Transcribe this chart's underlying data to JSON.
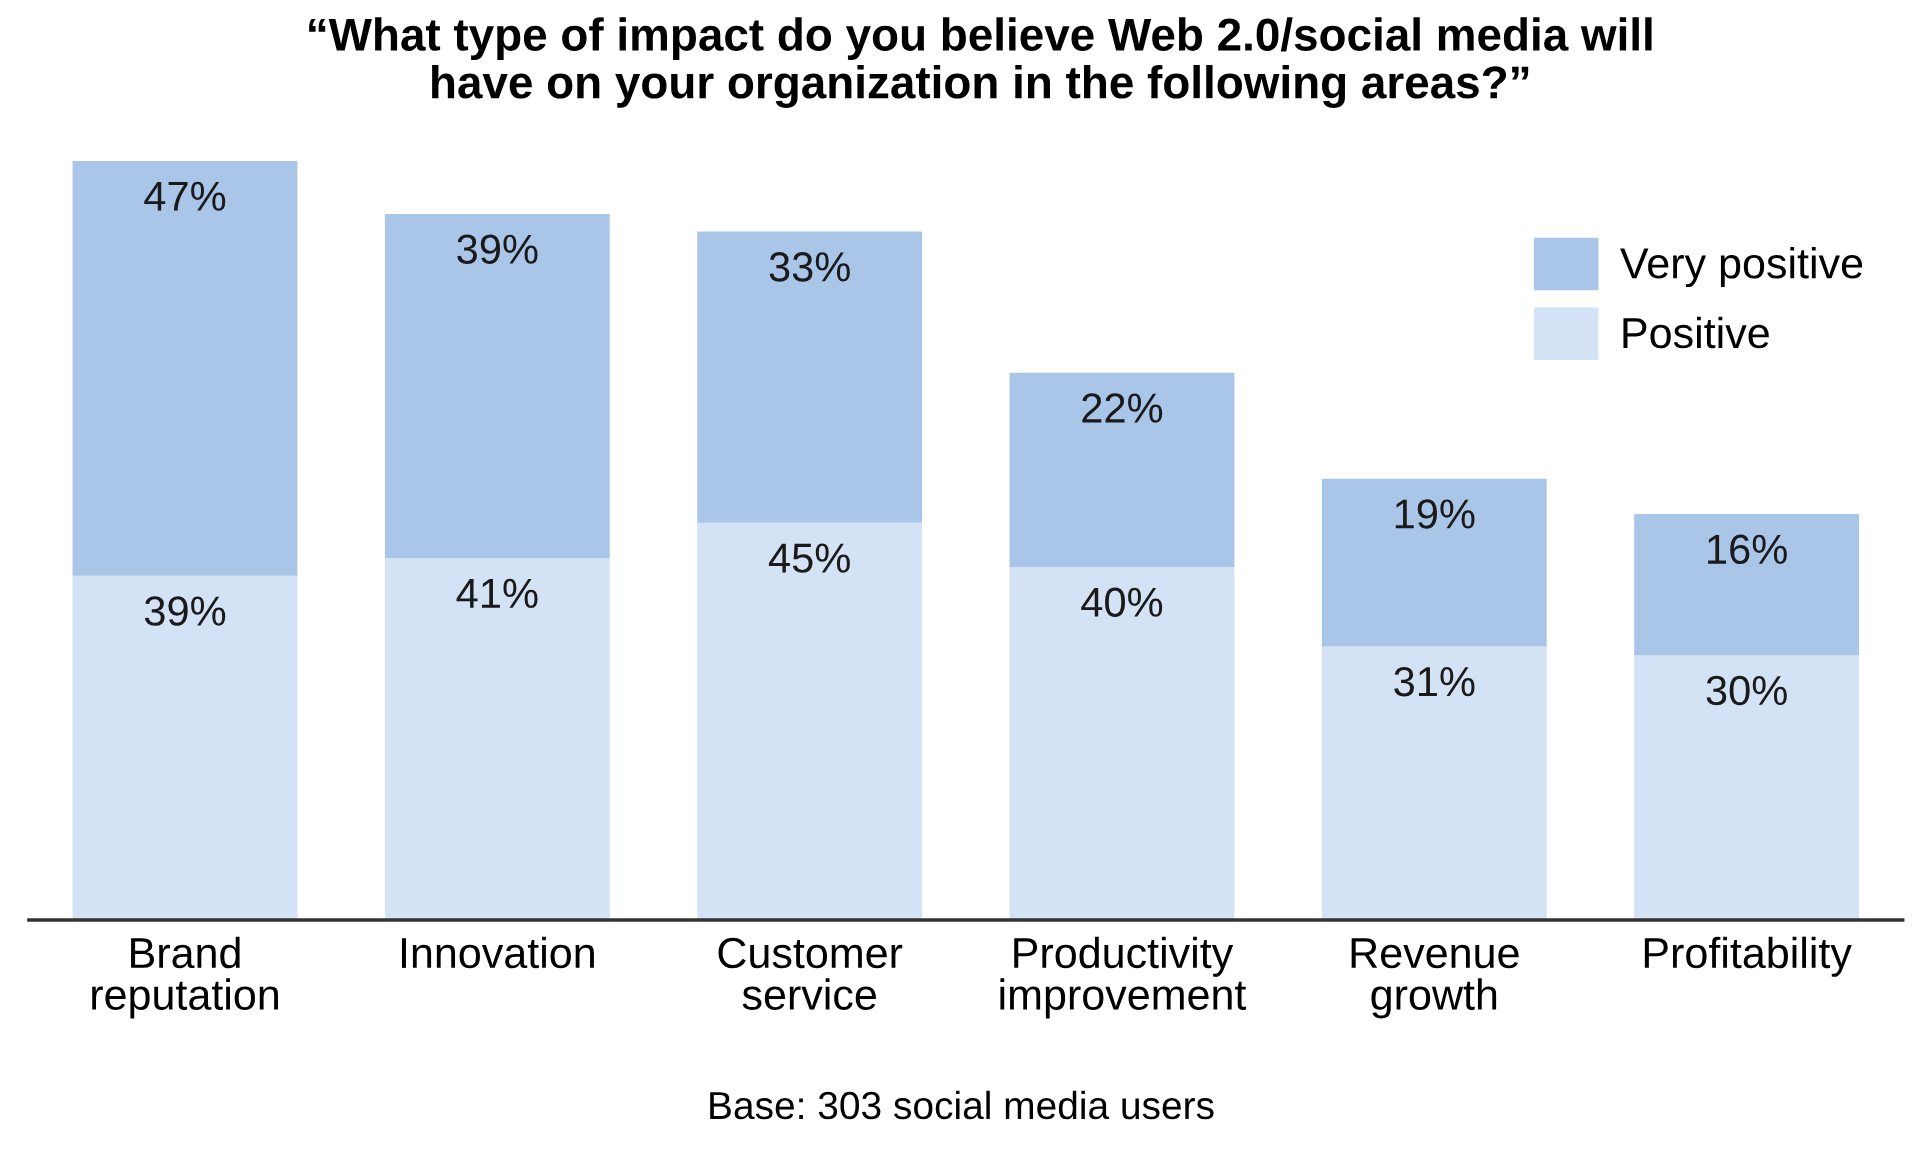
{
  "chart_data": {
    "type": "bar",
    "stacked": true,
    "title": "“What type of impact do you believe Web 2.0/social media will\nhave on your organization in the following areas?”",
    "categories": [
      "Brand\nreputation",
      "Innovation",
      "Customer\nservice",
      "Productivity\nimprovement",
      "Revenue\ngrowth",
      "Profitability"
    ],
    "series": [
      {
        "name": "Positive",
        "color": "#d3e2f4",
        "values": [
          39,
          41,
          45,
          40,
          31,
          30
        ],
        "value_labels": [
          "39%",
          "41%",
          "45%",
          "40%",
          "31%",
          "30%"
        ]
      },
      {
        "name": "Very positive",
        "color": "#a9c6e8",
        "values": [
          47,
          39,
          33,
          22,
          19,
          16
        ],
        "value_labels": [
          "47%",
          "39%",
          "33%",
          "22%",
          "19%",
          "16%"
        ]
      }
    ],
    "legend": "top right",
    "grid": false,
    "annotations": [
      "Base: 303 social media users"
    ]
  }
}
